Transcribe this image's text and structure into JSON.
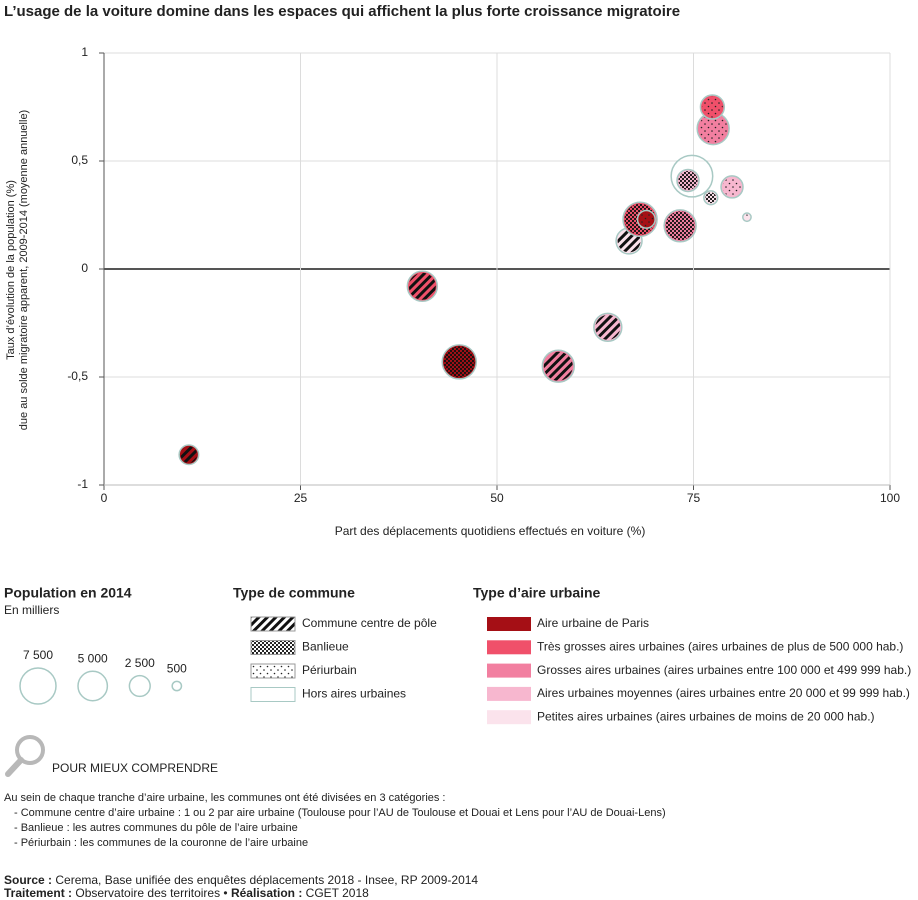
{
  "chart_data": {
    "type": "bubble",
    "title": "L’usage de la voiture domine dans les espaces qui affichent la plus forte croissance migratoire",
    "y_label": [
      "Taux d’évolution de la population (%)",
      "due au solde migratoire apparent, 2009-2014 (moyenne annuelle)"
    ],
    "x_label": "Part des déplacements quotidiens effectués en voiture (%)",
    "xlim": [
      0,
      100
    ],
    "xticks": [
      0,
      25,
      50,
      75,
      100
    ],
    "ylim": [
      -1,
      1
    ],
    "yticks": [
      -1,
      {
        "value": -0.5,
        "label": "-0,5"
      },
      0,
      {
        "value": 0.5,
        "label": "0,5"
      },
      1
    ],
    "grid": true,
    "x": [
      10.8,
      40.5,
      45.2,
      57.8,
      64.1,
      66.8,
      74.8,
      68.2,
      69.0,
      73.3,
      74.3,
      77.5,
      77.4,
      77.2,
      79.9,
      81.8
    ],
    "values": [
      -0.86,
      -0.08,
      -0.43,
      -0.45,
      -0.27,
      0.13,
      0.43,
      0.23,
      0.23,
      0.2,
      0.41,
      0.65,
      0.75,
      0.33,
      0.38,
      0.24
    ],
    "sizes": [
      2200,
      5200,
      6700,
      5900,
      4500,
      3900,
      10000,
      6700,
      1800,
      5900,
      2800,
      5900,
      3300,
      1100,
      2800,
      400
    ],
    "commune": [
      "Commune centre de pôle",
      "Commune centre de pôle",
      "Banlieue",
      "Commune centre de pôle",
      "Commune centre de pôle",
      "Commune centre de pôle",
      "Hors aires urbaines",
      "Banlieue",
      "Périurbain",
      "Banlieue",
      "Banlieue",
      "Périurbain",
      "Périurbain",
      "Banlieue",
      "Périurbain",
      "Périurbain"
    ],
    "aire": [
      "Aire urbaine de Paris",
      "Très grosses aires urbaines (aires urbaines de plus de 500 000 hab.)",
      "Aire urbaine de Paris",
      "Grosses aires urbaines (aires urbaines entre 100 000 et 499 999 hab.)",
      "Aires urbaines moyennes (aires urbaines entre 20 000 et 99 999 hab.)",
      "Petites aires urbaines (aires urbaines de moins de 20 000 hab.)",
      null,
      "Très grosses aires urbaines (aires urbaines de plus de 500 000 hab.)",
      "Aire urbaine de Paris",
      "Grosses aires urbaines (aires urbaines entre 100 000 et 499 999 hab.)",
      "Aires urbaines moyennes (aires urbaines entre 20 000 et 99 999 hab.)",
      "Grosses aires urbaines (aires urbaines entre 100 000 et 499 999 hab.)",
      "Très grosses aires urbaines (aires urbaines de plus de 500 000 hab.)",
      "Petites aires urbaines (aires urbaines de moins de 20 000 hab.)",
      "Aires urbaines moyennes (aires urbaines entre 20 000 et 99 999 hab.)",
      "Petites aires urbaines (aires urbaines de moins de 20 000 hab.)"
    ],
    "size_legend": {
      "title": "Population en 2014",
      "subtitle": "En milliers",
      "values": [
        7500,
        5000,
        2500,
        500
      ],
      "value_labels": [
        "7 500",
        "5 000",
        "2 500",
        "500"
      ]
    },
    "commune_legend": {
      "title": "Type de commune",
      "items": [
        {
          "label": "Commune centre de pôle",
          "pattern": "stripes"
        },
        {
          "label": "Banlieue",
          "pattern": "dense-dots"
        },
        {
          "label": "Périurbain",
          "pattern": "sparse-dots"
        },
        {
          "label": "Hors aires urbaines",
          "pattern": "none"
        }
      ]
    },
    "aire_legend": {
      "title": "Type d’aire urbaine",
      "items": [
        {
          "label": "Aire urbaine de Paris",
          "color": "#a50f15"
        },
        {
          "label": "Très grosses aires urbaines (aires urbaines de plus de 500 000 hab.)",
          "color": "#f0506a"
        },
        {
          "label": "Grosses aires urbaines (aires urbaines entre 100 000 et 499 999 hab.)",
          "color": "#f27fa0"
        },
        {
          "label": "Aires urbaines moyennes (aires urbaines entre 20 000 et 99 999 hab.)",
          "color": "#f7b7cf"
        },
        {
          "label": "Petites aires urbaines (aires urbaines de moins de 20 000 hab.)",
          "color": "#fbe3ec"
        }
      ]
    }
  },
  "note": {
    "heading": "POUR MIEUX COMPRENDRE",
    "lines": [
      "Au sein de chaque tranche d’aire urbaine, les communes ont été divisées en 3 catégories :",
      "- Commune centre d’aire urbaine : 1 ou 2 par aire urbaine (Toulouse pour l’AU de Toulouse et Douai et Lens pour l’AU de Douai-Lens)",
      "- Banlieue : les autres communes du pôle de l’aire urbaine",
      "- Périurbain : les communes de la couronne de l’aire urbaine"
    ]
  },
  "source": {
    "source_label": "Source :",
    "source_text": "Cerema, Base unifiée des enquêtes déplacements 2018 - Insee, RP 2009-2014",
    "treatment_label": "Traitement :",
    "treatment_text": "Observatoire des territoires •",
    "realisation_label": "Réalisation :",
    "realisation_text": "CGET 2018"
  }
}
